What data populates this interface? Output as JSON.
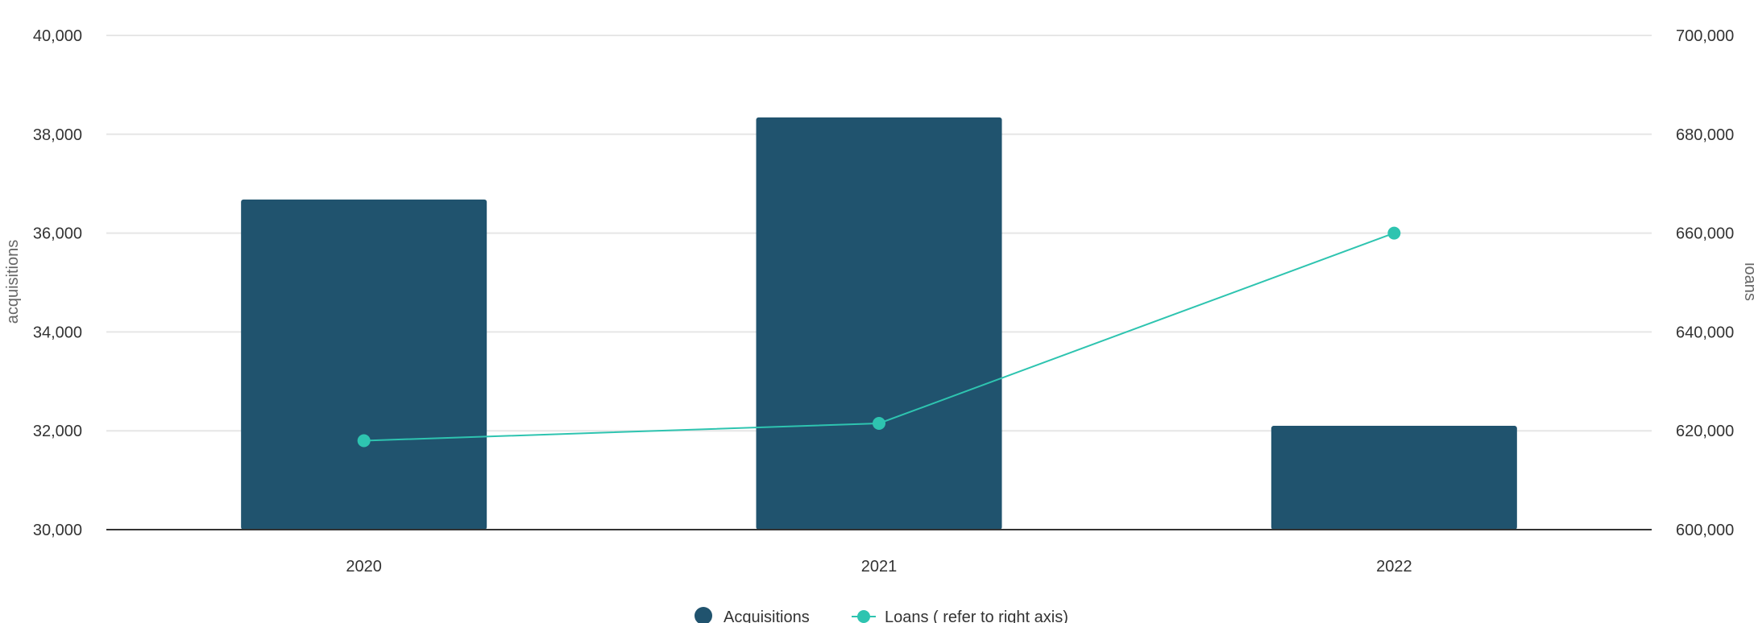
{
  "chart_data": {
    "type": "bar",
    "categories": [
      "2020",
      "2021",
      "2022"
    ],
    "series": [
      {
        "name": "Acquisitions",
        "kind": "bar",
        "axis": "left",
        "values": [
          36680,
          38340,
          32100
        ],
        "color": "#20536e"
      },
      {
        "name": "Loans ( refer to right axis)",
        "kind": "line",
        "axis": "right",
        "values": [
          618000,
          621500,
          660000
        ],
        "color": "#2ec4b0"
      }
    ],
    "ylabel": "acquisitions",
    "y2label": "loans",
    "ylim": [
      30000,
      40000
    ],
    "y2lim": [
      600000,
      700000
    ],
    "yticks": [
      "30,000",
      "32,000",
      "34,000",
      "36,000",
      "38,000",
      "40,000"
    ],
    "y2ticks": [
      "600,000",
      "620,000",
      "640,000",
      "660,000",
      "680,000",
      "700,000"
    ],
    "grid": true,
    "legend": "bottom-center"
  }
}
